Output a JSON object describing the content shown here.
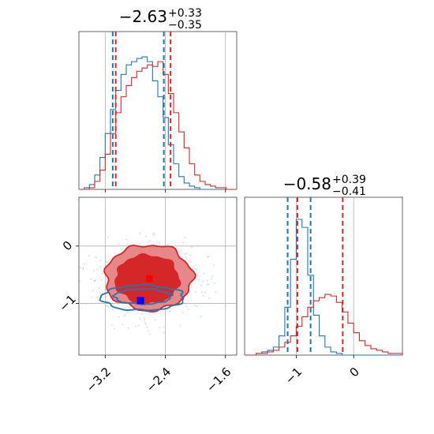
{
  "chart_data": {
    "type": "corner",
    "colors": {
      "run_blue": "#1f77b4",
      "run_red": "#d62728"
    },
    "grid": true,
    "panels": [
      {
        "id": "hist_p1",
        "type": "histogram",
        "title": {
          "median": "−2.63",
          "plus": "+0.33",
          "minus": "−0.35"
        },
        "xlim": [
          -3.55,
          -1.45
        ],
        "xticks": [
          -3.2,
          -2.4,
          -1.6
        ],
        "quantile_lines": {
          "blue": [
            -3.1,
            -2.42
          ],
          "red": [
            -3.06,
            -2.33
          ]
        },
        "series": [
          {
            "name": "",
            "color": "#1f77b4",
            "x": [
              -3.55,
              -3.48,
              -3.41,
              -3.34,
              -3.27,
              -3.2,
              -3.13,
              -3.06,
              -2.99,
              -2.92,
              -2.85,
              -2.78,
              -2.71,
              -2.64,
              -2.57,
              -2.5,
              -2.43,
              -2.36,
              -2.29,
              -2.22,
              -2.15,
              -2.08,
              -2.01,
              -1.94,
              -1.87,
              -1.8,
              -1.73,
              -1.66,
              -1.59,
              -1.52,
              -1.45
            ],
            "counts": [
              0,
              0.01,
              0.03,
              0.09,
              0.2,
              0.35,
              0.5,
              0.62,
              0.72,
              0.78,
              0.8,
              0.82,
              0.83,
              0.8,
              0.68,
              0.58,
              0.45,
              0.28,
              0.16,
              0.08,
              0.04,
              0.02,
              0.01,
              0,
              0,
              0,
              0,
              0,
              0,
              0
            ]
          },
          {
            "name": "",
            "color": "#d62728",
            "x": [
              -3.55,
              -3.48,
              -3.41,
              -3.34,
              -3.27,
              -3.2,
              -3.13,
              -3.06,
              -2.99,
              -2.92,
              -2.85,
              -2.78,
              -2.71,
              -2.64,
              -2.57,
              -2.5,
              -2.43,
              -2.36,
              -2.29,
              -2.22,
              -2.15,
              -2.08,
              -2.01,
              -1.94,
              -1.87,
              -1.8,
              -1.73,
              -1.66,
              -1.59,
              -1.52,
              -1.45
            ],
            "counts": [
              0,
              0,
              0.01,
              0.05,
              0.12,
              0.22,
              0.35,
              0.48,
              0.58,
              0.65,
              0.7,
              0.74,
              0.76,
              0.78,
              0.77,
              0.8,
              0.72,
              0.6,
              0.48,
              0.36,
              0.26,
              0.16,
              0.09,
              0.05,
              0.03,
              0.02,
              0.01,
              0.01,
              0,
              0
            ]
          }
        ]
      },
      {
        "id": "scatter_p1_p2",
        "type": "contour",
        "xlim": [
          -3.55,
          -1.45
        ],
        "ylim": [
          -1.9,
          0.85
        ],
        "xticks": [
          -3.2,
          -2.4,
          -1.6
        ],
        "yticks": [
          0,
          -1
        ],
        "levels": [
          {
            "series": "red",
            "cx": -2.62,
            "cy": -0.55,
            "rx": 0.58,
            "ry": 0.57,
            "fill": "#e8878a"
          },
          {
            "series": "red",
            "cx": -2.64,
            "cy": -0.58,
            "rx": 0.42,
            "ry": 0.42,
            "fill": "#d62728"
          },
          {
            "series": "blue",
            "cx": -2.7,
            "cy": -0.9,
            "rx": 0.55,
            "ry": 0.22,
            "fill": "none"
          },
          {
            "series": "blue",
            "cx": -2.7,
            "cy": -0.88,
            "rx": 0.38,
            "ry": 0.13,
            "fill": "none"
          }
        ],
        "markers": [
          {
            "color": "#ff0000",
            "x": -2.61,
            "y": -0.57
          },
          {
            "color": "#0000ff",
            "x": -2.73,
            "y": -0.95
          }
        ]
      },
      {
        "id": "hist_p2",
        "type": "histogram",
        "title": {
          "median": "−0.58",
          "plus": "+0.39",
          "minus": "−0.41"
        },
        "xlim": [
          -1.9,
          0.85
        ],
        "xticks": [
          -1,
          0
        ],
        "quantile_lines": {
          "blue": [
            -1.15,
            -0.75
          ],
          "red": [
            -0.98,
            -0.19
          ]
        },
        "series": [
          {
            "name": "",
            "color": "#1f77b4",
            "x": [
              -1.9,
              -1.8,
              -1.7,
              -1.6,
              -1.5,
              -1.4,
              -1.3,
              -1.2,
              -1.1,
              -1.0,
              -0.9,
              -0.8,
              -0.7,
              -0.6,
              -0.5,
              -0.4,
              -0.3,
              -0.2,
              -0.1,
              0.0,
              0.1,
              0.2,
              0.3,
              0.4,
              0.5,
              0.6,
              0.7,
              0.8,
              0.85
            ],
            "counts": [
              0,
              0,
              0.01,
              0.02,
              0.03,
              0.05,
              0.12,
              0.3,
              0.6,
              0.85,
              0.8,
              0.5,
              0.25,
              0.12,
              0.05,
              0.02,
              0.01,
              0,
              0,
              0,
              0,
              0,
              0,
              0,
              0,
              0,
              0,
              0
            ]
          },
          {
            "name": "",
            "color": "#d62728",
            "x": [
              -1.9,
              -1.8,
              -1.7,
              -1.6,
              -1.5,
              -1.4,
              -1.3,
              -1.2,
              -1.1,
              -1.0,
              -0.9,
              -0.8,
              -0.7,
              -0.6,
              -0.5,
              -0.4,
              -0.3,
              -0.2,
              -0.1,
              0.0,
              0.1,
              0.2,
              0.3,
              0.4,
              0.5,
              0.6,
              0.7,
              0.8,
              0.85
            ],
            "counts": [
              0,
              0,
              0.01,
              0.01,
              0.02,
              0.03,
              0.05,
              0.08,
              0.12,
              0.18,
              0.24,
              0.3,
              0.34,
              0.36,
              0.38,
              0.37,
              0.33,
              0.27,
              0.2,
              0.14,
              0.09,
              0.06,
              0.04,
              0.03,
              0.02,
              0.01,
              0.01,
              0.01
            ]
          }
        ]
      }
    ]
  }
}
